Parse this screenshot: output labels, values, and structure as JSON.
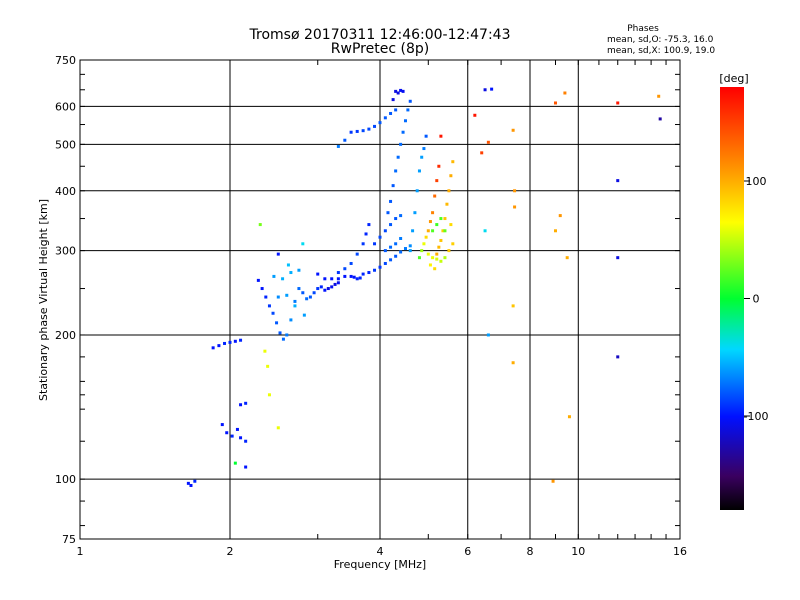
{
  "chart_data": {
    "type": "scatter",
    "title": "Tromsø 20170311 12:46:00-12:47:43",
    "subtitle": "RwPretec (8p)",
    "xlabel": "Frequency [MHz]",
    "ylabel": "Stationary phase Virtual Height [km]",
    "xscale": "log",
    "yscale": "log",
    "xlim": [
      1,
      16
    ],
    "ylim": [
      75,
      750
    ],
    "x_ticks": [
      1,
      2,
      4,
      6,
      8,
      10,
      16
    ],
    "x_tick_labels": [
      "1",
      "2",
      "4",
      "6",
      "8",
      "10",
      "16"
    ],
    "y_ticks": [
      75,
      100,
      200,
      300,
      400,
      500,
      600,
      750
    ],
    "y_tick_labels": [
      "75",
      "100",
      "200",
      "300",
      "400",
      "500",
      "600",
      "750"
    ],
    "major_gridlines_x": [
      2,
      4,
      6,
      8,
      10
    ],
    "major_gridlines_y": [
      100,
      200,
      300,
      400,
      500,
      600
    ],
    "stats": {
      "heading": "Phases",
      "line_o": "mean, sd,O: -75.3, 16.0",
      "line_x": "mean, sd,X: 100.9, 19.0"
    },
    "colorbar": {
      "label": "[deg]",
      "range": [
        -180,
        180
      ],
      "ticks": [
        100,
        0,
        -100
      ],
      "tick_labels": [
        "100",
        "0",
        "-100"
      ]
    },
    "series": [
      {
        "name": "traces",
        "points": [
          [
            1.65,
            98,
            -100
          ],
          [
            1.67,
            97,
            -100
          ],
          [
            1.7,
            99,
            -95
          ],
          [
            1.85,
            188,
            -100
          ],
          [
            1.9,
            190,
            -100
          ],
          [
            1.95,
            192,
            -95
          ],
          [
            2.0,
            193,
            -95
          ],
          [
            2.05,
            194,
            -100
          ],
          [
            2.1,
            195,
            -95
          ],
          [
            1.93,
            130,
            -100
          ],
          [
            1.97,
            125,
            -100
          ],
          [
            2.02,
            123,
            -95
          ],
          [
            2.07,
            127,
            -100
          ],
          [
            2.1,
            143,
            -100
          ],
          [
            2.15,
            144,
            -95
          ],
          [
            2.1,
            122,
            -100
          ],
          [
            2.15,
            120,
            -95
          ],
          [
            2.05,
            108,
            0
          ],
          [
            2.15,
            106,
            -100
          ],
          [
            2.28,
            260,
            -100
          ],
          [
            2.32,
            250,
            -100
          ],
          [
            2.36,
            240,
            -95
          ],
          [
            2.4,
            230,
            -90
          ],
          [
            2.44,
            222,
            -85
          ],
          [
            2.48,
            212,
            -80
          ],
          [
            2.52,
            202,
            -80
          ],
          [
            2.56,
            196,
            -75
          ],
          [
            2.6,
            200,
            -70
          ],
          [
            2.65,
            215,
            -65
          ],
          [
            2.7,
            235,
            -70
          ],
          [
            2.75,
            250,
            -75
          ],
          [
            2.8,
            245,
            -80
          ],
          [
            2.85,
            238,
            -75
          ],
          [
            2.9,
            240,
            -80
          ],
          [
            2.95,
            245,
            -85
          ],
          [
            3.0,
            250,
            -90
          ],
          [
            3.05,
            252,
            -95
          ],
          [
            3.1,
            248,
            -100
          ],
          [
            3.15,
            250,
            -110
          ],
          [
            3.2,
            252,
            -105
          ],
          [
            3.25,
            255,
            -110
          ],
          [
            3.3,
            257,
            -105
          ],
          [
            2.45,
            265,
            -60
          ],
          [
            2.55,
            262,
            -55
          ],
          [
            2.65,
            270,
            -55
          ],
          [
            2.75,
            273,
            -60
          ],
          [
            2.62,
            280,
            -50
          ],
          [
            2.5,
            240,
            -65
          ],
          [
            2.6,
            242,
            -60
          ],
          [
            2.7,
            230,
            -55
          ],
          [
            2.82,
            220,
            -60
          ],
          [
            2.3,
            340,
            30
          ],
          [
            2.8,
            310,
            -40
          ],
          [
            2.5,
            295,
            -100
          ],
          [
            2.4,
            150,
            60
          ],
          [
            2.5,
            128,
            60
          ],
          [
            2.38,
            172,
            60
          ],
          [
            2.35,
            185,
            60
          ],
          [
            3.0,
            268,
            -100
          ],
          [
            3.1,
            262,
            -100
          ],
          [
            3.2,
            262,
            -100
          ],
          [
            3.3,
            262,
            -100
          ],
          [
            3.4,
            265,
            -100
          ],
          [
            3.5,
            265,
            -100
          ],
          [
            3.55,
            264,
            -100
          ],
          [
            3.6,
            262,
            -95
          ],
          [
            3.65,
            263,
            -95
          ],
          [
            3.7,
            268,
            -95
          ],
          [
            3.8,
            270,
            -95
          ],
          [
            3.9,
            273,
            -90
          ],
          [
            4.0,
            277,
            -90
          ],
          [
            4.1,
            282,
            -85
          ],
          [
            4.2,
            287,
            -80
          ],
          [
            4.3,
            292,
            -80
          ],
          [
            4.4,
            298,
            -75
          ],
          [
            4.5,
            303,
            -70
          ],
          [
            4.6,
            307,
            -65
          ],
          [
            3.3,
            270,
            -90
          ],
          [
            3.4,
            275,
            -85
          ],
          [
            3.5,
            282,
            -85
          ],
          [
            3.6,
            295,
            -85
          ],
          [
            3.7,
            310,
            -90
          ],
          [
            3.75,
            325,
            -95
          ],
          [
            3.8,
            340,
            -95
          ],
          [
            3.9,
            310,
            -90
          ],
          [
            4.0,
            320,
            -85
          ],
          [
            4.1,
            330,
            -85
          ],
          [
            4.2,
            340,
            -80
          ],
          [
            4.3,
            350,
            -80
          ],
          [
            4.4,
            355,
            -75
          ],
          [
            4.1,
            300,
            -80
          ],
          [
            4.2,
            305,
            -75
          ],
          [
            4.3,
            310,
            -75
          ],
          [
            4.4,
            318,
            -70
          ],
          [
            4.15,
            360,
            -80
          ],
          [
            4.2,
            380,
            -80
          ],
          [
            4.25,
            410,
            -80
          ],
          [
            4.3,
            440,
            -75
          ],
          [
            4.35,
            470,
            -75
          ],
          [
            4.4,
            500,
            -75
          ],
          [
            4.45,
            530,
            -75
          ],
          [
            4.5,
            560,
            -75
          ],
          [
            4.55,
            590,
            -75
          ],
          [
            4.6,
            615,
            -80
          ],
          [
            4.25,
            620,
            -110
          ],
          [
            4.3,
            645,
            -110
          ],
          [
            4.35,
            640,
            -110
          ],
          [
            4.4,
            648,
            -105
          ],
          [
            4.45,
            645,
            -105
          ],
          [
            3.5,
            530,
            -90
          ],
          [
            3.6,
            532,
            -90
          ],
          [
            3.7,
            534,
            -85
          ],
          [
            3.8,
            538,
            -85
          ],
          [
            3.9,
            545,
            -85
          ],
          [
            4.0,
            555,
            -80
          ],
          [
            4.1,
            568,
            -80
          ],
          [
            4.2,
            580,
            -80
          ],
          [
            4.3,
            590,
            -80
          ],
          [
            3.4,
            510,
            -80
          ],
          [
            3.3,
            495,
            -70
          ],
          [
            4.6,
            300,
            -60
          ],
          [
            4.65,
            330,
            -60
          ],
          [
            4.7,
            360,
            -60
          ],
          [
            4.75,
            400,
            -60
          ],
          [
            4.8,
            440,
            -60
          ],
          [
            4.85,
            470,
            -60
          ],
          [
            4.9,
            490,
            -70
          ],
          [
            4.95,
            520,
            -80
          ],
          [
            4.8,
            290,
            20
          ],
          [
            4.85,
            300,
            40
          ],
          [
            4.9,
            310,
            60
          ],
          [
            4.95,
            320,
            80
          ],
          [
            5.0,
            330,
            100
          ],
          [
            5.05,
            345,
            110
          ],
          [
            5.1,
            360,
            120
          ],
          [
            5.15,
            390,
            130
          ],
          [
            5.2,
            420,
            150
          ],
          [
            5.25,
            450,
            160
          ],
          [
            5.3,
            520,
            170
          ],
          [
            5.2,
            295,
            100
          ],
          [
            5.25,
            305,
            95
          ],
          [
            5.3,
            315,
            90
          ],
          [
            5.35,
            330,
            85
          ],
          [
            5.4,
            350,
            90
          ],
          [
            5.45,
            375,
            95
          ],
          [
            5.5,
            400,
            100
          ],
          [
            5.55,
            430,
            100
          ],
          [
            5.6,
            460,
            95
          ],
          [
            5.0,
            295,
            60
          ],
          [
            5.1,
            290,
            60
          ],
          [
            5.2,
            288,
            55
          ],
          [
            5.3,
            285,
            50
          ],
          [
            5.4,
            290,
            45
          ],
          [
            5.1,
            330,
            20
          ],
          [
            5.2,
            340,
            15
          ],
          [
            5.3,
            350,
            20
          ],
          [
            5.4,
            330,
            25
          ],
          [
            5.05,
            280,
            70
          ],
          [
            5.15,
            275,
            80
          ],
          [
            5.5,
            300,
            90
          ],
          [
            5.6,
            310,
            85
          ],
          [
            5.55,
            340,
            80
          ],
          [
            6.2,
            575,
            170
          ],
          [
            6.5,
            650,
            -110
          ],
          [
            6.7,
            652,
            -100
          ],
          [
            6.4,
            480,
            150
          ],
          [
            6.6,
            505,
            140
          ],
          [
            6.5,
            330,
            -40
          ],
          [
            6.6,
            200,
            -60
          ],
          [
            7.4,
            535,
            110
          ],
          [
            7.45,
            400,
            110
          ],
          [
            7.45,
            370,
            110
          ],
          [
            7.4,
            230,
            90
          ],
          [
            7.4,
            175,
            100
          ],
          [
            9.0,
            610,
            140
          ],
          [
            9.4,
            640,
            120
          ],
          [
            9.0,
            330,
            100
          ],
          [
            9.2,
            355,
            110
          ],
          [
            9.5,
            290,
            100
          ],
          [
            9.6,
            135,
            100
          ],
          [
            8.9,
            99,
            110
          ],
          [
            12.0,
            610,
            170
          ],
          [
            14.5,
            630,
            110
          ],
          [
            14.6,
            565,
            -130
          ],
          [
            12.0,
            420,
            -110
          ],
          [
            12.0,
            290,
            -110
          ],
          [
            12.0,
            180,
            -120
          ]
        ]
      }
    ]
  }
}
